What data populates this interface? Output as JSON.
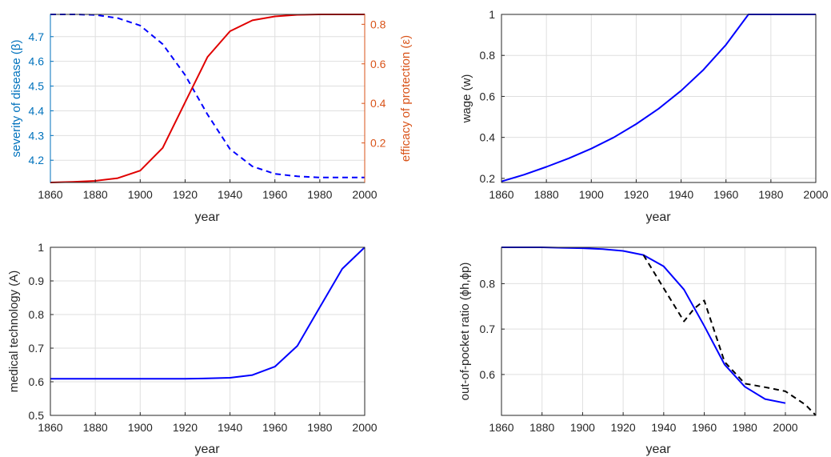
{
  "chart_data": [
    {
      "type": "line",
      "x": [
        1860,
        1870,
        1880,
        1890,
        1900,
        1910,
        1920,
        1930,
        1940,
        1950,
        1960,
        1970,
        1980,
        1990,
        2000
      ],
      "xlabel": "year",
      "xlim": [
        1860,
        2000
      ],
      "xticks": [
        1860,
        1880,
        1900,
        1920,
        1940,
        1960,
        1980,
        2000
      ],
      "ylabel_left": "severity of disease (β)",
      "ylim_left": [
        4.11,
        4.79
      ],
      "yticks_left": [
        4.2,
        4.3,
        4.4,
        4.5,
        4.6,
        4.7
      ],
      "ylabel_right": "efficacy of protection (ε)",
      "ylim_right": [
        0.0,
        0.85
      ],
      "yticks_right": [
        0.2,
        0.4,
        0.6,
        0.8
      ],
      "grid": true,
      "series": [
        {
          "axis": "left",
          "values": [
            4.79,
            4.79,
            4.788,
            4.775,
            4.745,
            4.67,
            4.545,
            4.385,
            4.245,
            4.175,
            4.145,
            4.135,
            4.13,
            4.13,
            4.13
          ],
          "color": "#0000ff",
          "style": "dashed"
        },
        {
          "axis": "right",
          "values": [
            0.0,
            0.003,
            0.008,
            0.022,
            0.06,
            0.175,
            0.405,
            0.635,
            0.765,
            0.82,
            0.84,
            0.848,
            0.85,
            0.85,
            0.85
          ],
          "color": "#e00000",
          "style": "solid"
        }
      ],
      "axis_colors": {
        "left": "#0072bd",
        "right": "#d95319"
      }
    },
    {
      "type": "line",
      "x": [
        1860,
        1870,
        1880,
        1890,
        1900,
        1910,
        1920,
        1930,
        1940,
        1950,
        1960,
        1970,
        1980,
        1990,
        2000
      ],
      "xlabel": "year",
      "xlim": [
        1860,
        2000
      ],
      "xticks": [
        1860,
        1880,
        1900,
        1920,
        1940,
        1960,
        1980,
        2000
      ],
      "ylabel": "wage (w)",
      "ylim": [
        0.18,
        1.0
      ],
      "yticks": [
        0.2,
        0.4,
        0.6,
        0.8,
        1
      ],
      "grid": true,
      "series": [
        {
          "values": [
            0.185,
            0.218,
            0.256,
            0.298,
            0.345,
            0.4,
            0.465,
            0.54,
            0.628,
            0.73,
            0.852,
            1.0,
            1.0,
            1.0,
            1.0
          ],
          "color": "#0000ff",
          "style": "solid"
        }
      ]
    },
    {
      "type": "line",
      "x": [
        1860,
        1870,
        1880,
        1890,
        1900,
        1910,
        1920,
        1930,
        1940,
        1950,
        1960,
        1970,
        1980,
        1990,
        2000
      ],
      "xlabel": "year",
      "xlim": [
        1860,
        2000
      ],
      "xticks": [
        1860,
        1880,
        1900,
        1920,
        1940,
        1960,
        1980,
        2000
      ],
      "ylabel": "medical technology (A)",
      "ylim": [
        0.5,
        1.0
      ],
      "yticks": [
        0.5,
        0.6,
        0.7,
        0.8,
        0.9,
        1
      ],
      "grid": true,
      "series": [
        {
          "values": [
            0.609,
            0.609,
            0.609,
            0.609,
            0.609,
            0.609,
            0.609,
            0.61,
            0.612,
            0.62,
            0.645,
            0.707,
            0.822,
            0.936,
            1.0
          ],
          "color": "#0000ff",
          "style": "solid"
        }
      ]
    },
    {
      "type": "line",
      "xlabel": "year",
      "xlim": [
        1860,
        2015
      ],
      "xticks": [
        1860,
        1880,
        1900,
        1920,
        1940,
        1960,
        1980,
        2000
      ],
      "ylabel": "out-of-pocket ratio (ϕh,ϕp)",
      "ylim": [
        0.51,
        0.88
      ],
      "yticks": [
        0.6,
        0.7,
        0.8
      ],
      "grid": true,
      "series": [
        {
          "x": [
            1860,
            1870,
            1880,
            1890,
            1900,
            1910,
            1920,
            1930,
            1940,
            1950,
            1960,
            1970,
            1980,
            1990,
            2000
          ],
          "values": [
            0.88,
            0.88,
            0.88,
            0.879,
            0.878,
            0.876,
            0.872,
            0.863,
            0.838,
            0.787,
            0.707,
            0.622,
            0.573,
            0.546,
            0.537
          ],
          "color": "#0000ff",
          "style": "solid"
        },
        {
          "x": [
            1930,
            1940,
            1950,
            1955,
            1960,
            1970,
            1980,
            1990,
            2000,
            2010,
            2015
          ],
          "values": [
            0.863,
            0.79,
            0.717,
            0.745,
            0.763,
            0.628,
            0.58,
            0.572,
            0.563,
            0.533,
            0.51
          ],
          "color": "#000000",
          "style": "dashed"
        }
      ]
    }
  ]
}
